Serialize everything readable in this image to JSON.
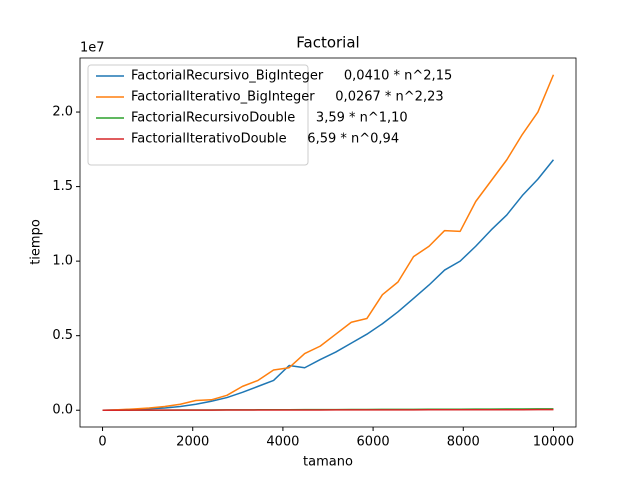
{
  "chart_data": {
    "type": "line",
    "title": "Factorial",
    "x_label": "tamano",
    "y_label": "tiempo",
    "y_offset_label": "1e7",
    "x": [
      0,
      345,
      690,
      1034,
      1379,
      1724,
      2069,
      2414,
      2759,
      3103,
      3448,
      3793,
      4138,
      4483,
      4828,
      5172,
      5517,
      5862,
      6207,
      6552,
      6897,
      7241,
      7586,
      7931,
      8276,
      8621,
      8966,
      9310,
      9655,
      10000
    ],
    "series": [
      {
        "name": "FactorialRecursivo_BigInteger     0,0410 * n^2,15",
        "color": "#1f77b4",
        "values": [
          0,
          20000,
          50000,
          100000,
          150000,
          250000,
          400000,
          600000,
          850000,
          1200000,
          1600000,
          2000000,
          3000000,
          2850000,
          3400000,
          3900000,
          4500000,
          5100000,
          5800000,
          6600000,
          7500000,
          8400000,
          9400000,
          10000000,
          11000000,
          12100000,
          13100000,
          14400000,
          15500000,
          16800000
        ]
      },
      {
        "name": "FactorialIterativo_BigInteger     0,0267 * n^2,23",
        "color": "#ff7f0e",
        "values": [
          0,
          30000,
          80000,
          150000,
          250000,
          400000,
          650000,
          700000,
          1000000,
          1600000,
          2000000,
          2700000,
          2850000,
          3800000,
          4300000,
          5100000,
          5900000,
          6150000,
          7750000,
          8600000,
          10300000,
          11000000,
          12050000,
          12000000,
          14000000,
          15400000,
          16800000,
          18500000,
          20000000,
          22500000
        ]
      },
      {
        "name": "FactorialRecursivoDouble     3,59 * n^1,10",
        "color": "#2ca02c",
        "values": [
          0,
          2200,
          4800,
          7400,
          10200,
          13100,
          16000,
          18900,
          21900,
          25000,
          28000,
          31000,
          34200,
          37300,
          40600,
          43600,
          46900,
          50100,
          53300,
          56700,
          59900,
          63200,
          66500,
          69800,
          73100,
          76400,
          79800,
          83200,
          86700,
          90100
        ]
      },
      {
        "name": "FactorialIterativoDouble     6,59 * n^0,94",
        "color": "#d62728",
        "values": [
          0,
          1600,
          3100,
          4500,
          5900,
          7300,
          8600,
          10000,
          11300,
          12600,
          13900,
          15200,
          16500,
          17800,
          19200,
          20400,
          21600,
          23000,
          24200,
          25600,
          26700,
          28100,
          29200,
          30600,
          31700,
          33000,
          34200,
          35500,
          36600,
          37900
        ]
      }
    ],
    "xlim": [
      -500,
      10500
    ],
    "xticks": [
      0,
      2000,
      4000,
      6000,
      8000,
      10000
    ],
    "ylim": [
      -1125000,
      23625000
    ],
    "yticks": [
      {
        "value": 0,
        "label": "0.0"
      },
      {
        "value": 5000000,
        "label": "0.5"
      },
      {
        "value": 10000000,
        "label": "1.0"
      },
      {
        "value": 15000000,
        "label": "1.5"
      },
      {
        "value": 20000000,
        "label": "2.0"
      }
    ],
    "grid": false,
    "legend": "upper left"
  }
}
